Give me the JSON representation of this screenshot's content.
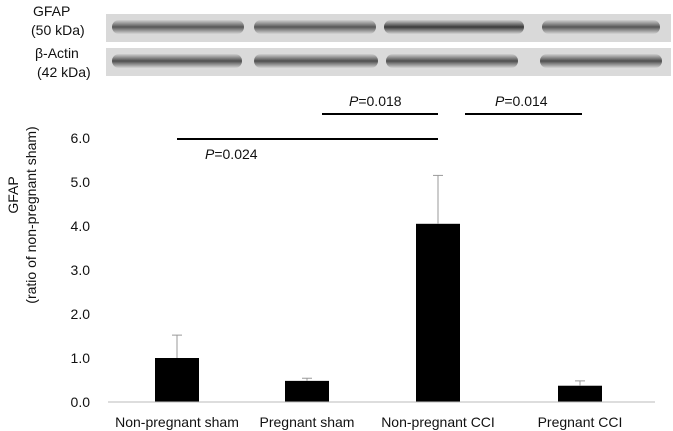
{
  "blot": {
    "rows": [
      {
        "protein": "GFAP",
        "size": "(50 kDa)"
      },
      {
        "protein": "β-Actin",
        "size": "(42 kDa)"
      }
    ]
  },
  "chart_data": {
    "type": "bar",
    "categories": [
      "Non-pregnant sham",
      "Pregnant sham",
      "Non-pregnant CCI",
      "Pregnant CCI"
    ],
    "values": [
      1.0,
      0.48,
      4.05,
      0.37
    ],
    "errors": [
      0.52,
      0.06,
      1.1,
      0.11
    ],
    "ylabel": "GFAP",
    "ylabel_sub": "(ratio of non-pregnant sham)",
    "ylim": [
      0,
      6.0
    ],
    "yticks": [
      "0.0",
      "1.0",
      "2.0",
      "3.0",
      "4.0",
      "5.0",
      "6.0"
    ],
    "bar_color": "#000000",
    "comparisons": [
      {
        "from": 2,
        "to": 3,
        "italic": "P",
        "text": "=0.014"
      },
      {
        "from": 1,
        "to": 2,
        "italic": "P",
        "text": "=0.018"
      },
      {
        "from": 0,
        "to": 2,
        "italic": "P",
        "text": "=0.024"
      }
    ]
  }
}
